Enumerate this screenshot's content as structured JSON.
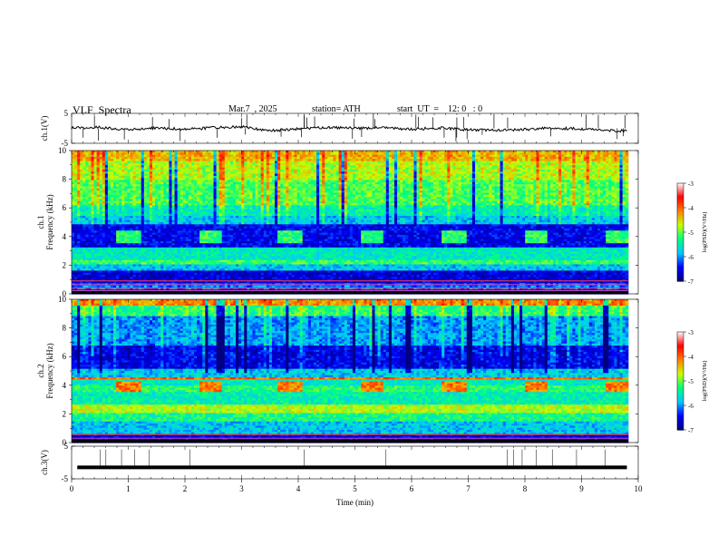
{
  "header": {
    "title": "VLF  Spectra",
    "date": "Mar.7  , 2025",
    "station": "station= ATH",
    "start_ut": "start  UT  =    12: 0   : 0"
  },
  "colors": {
    "jet_stops": [
      "#000080",
      "#0000ff",
      "#00c8ff",
      "#00ff80",
      "#c8ff00",
      "#ff8000",
      "#ff0000",
      "#ffffff"
    ],
    "trace": "#000000"
  },
  "chart_data": [
    {
      "type": "line",
      "name_label": "ch.1(V)",
      "ylabel": "ch.1(V)",
      "ylim": [
        -5,
        5
      ],
      "yticks": [
        "5",
        "-5"
      ],
      "xlim": [
        0,
        10
      ],
      "x": [
        0,
        0.5,
        1,
        1.5,
        2,
        2.5,
        3,
        3.5,
        4,
        4.5,
        5,
        5.5,
        6,
        6.5,
        7,
        7.5,
        8,
        8.5,
        9,
        9.5,
        9.8
      ],
      "y": [
        0.2,
        0.3,
        -0.5,
        0.1,
        -0.3,
        0.2,
        0.5,
        -0.8,
        -0.2,
        0.3,
        0,
        0.2,
        -0.3,
        0.1,
        -0.5,
        -0.6,
        -0.4,
        0.1,
        -0.2,
        -0.7,
        -0.9
      ]
    },
    {
      "type": "heatmap",
      "ylabel_top": "ch.1",
      "ylabel": "Frequency  (kHz)",
      "ylim": [
        0,
        10
      ],
      "yticks": [
        "10",
        "8",
        "6",
        "4",
        "2",
        "0"
      ],
      "xlim": [
        0,
        10
      ],
      "colorbar": {
        "label": "log(PSD)(V²/Hz)",
        "range": [
          -7,
          -3
        ],
        "ticks": [
          "-3",
          "-4",
          "-5",
          "-6",
          "-7"
        ]
      }
    },
    {
      "type": "heatmap",
      "ylabel_top": "ch.2",
      "ylabel": "Frequency  (kHz)",
      "ylim": [
        0,
        10
      ],
      "yticks": [
        "10",
        "8",
        "6",
        "4",
        "2",
        "0"
      ],
      "xlim": [
        0,
        10
      ],
      "colorbar": {
        "label": "log(PSD)(V²/Hz)",
        "range": [
          -7,
          -3
        ],
        "ticks": [
          "-3",
          "-4",
          "-5",
          "-6",
          "-7"
        ]
      }
    },
    {
      "type": "line",
      "ylabel": "ch.3(V)",
      "ylim": [
        -5,
        5
      ],
      "yticks": [
        "5",
        "-5"
      ],
      "xlim": [
        0,
        10
      ],
      "x": [
        0.1,
        9.8
      ],
      "y": [
        -1.5,
        -1.5
      ]
    }
  ],
  "xaxis": {
    "label": "Time  (min)",
    "ticks": [
      "0",
      "1",
      "2",
      "3",
      "4",
      "5",
      "6",
      "7",
      "8",
      "9",
      "10"
    ]
  }
}
